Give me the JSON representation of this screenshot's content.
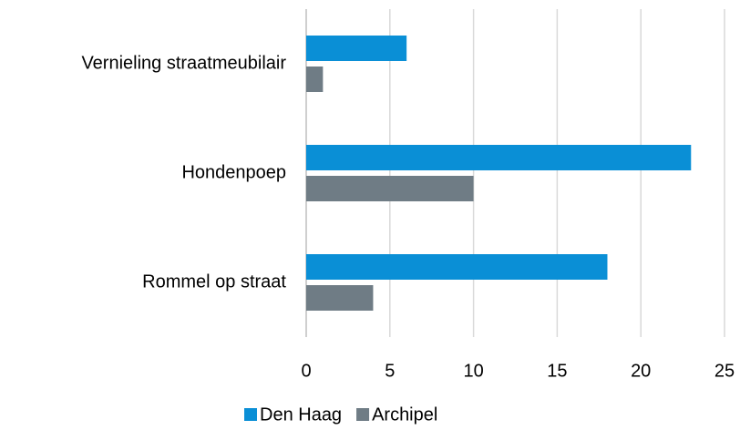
{
  "chart_data": {
    "type": "hbar",
    "categories": [
      "Vernieling straatmeubilair",
      "Hondenpoep",
      "Rommel op straat"
    ],
    "series": [
      {
        "name": "Den Haag",
        "color": "#0a8fd6",
        "values": [
          6,
          23,
          18
        ]
      },
      {
        "name": "Archipel",
        "color": "#6f7c85",
        "values": [
          1,
          10,
          4
        ]
      }
    ],
    "xlim": [
      0,
      25
    ],
    "xticks": [
      0,
      5,
      10,
      15,
      20,
      25
    ],
    "grid": true,
    "legend": "bottom"
  }
}
